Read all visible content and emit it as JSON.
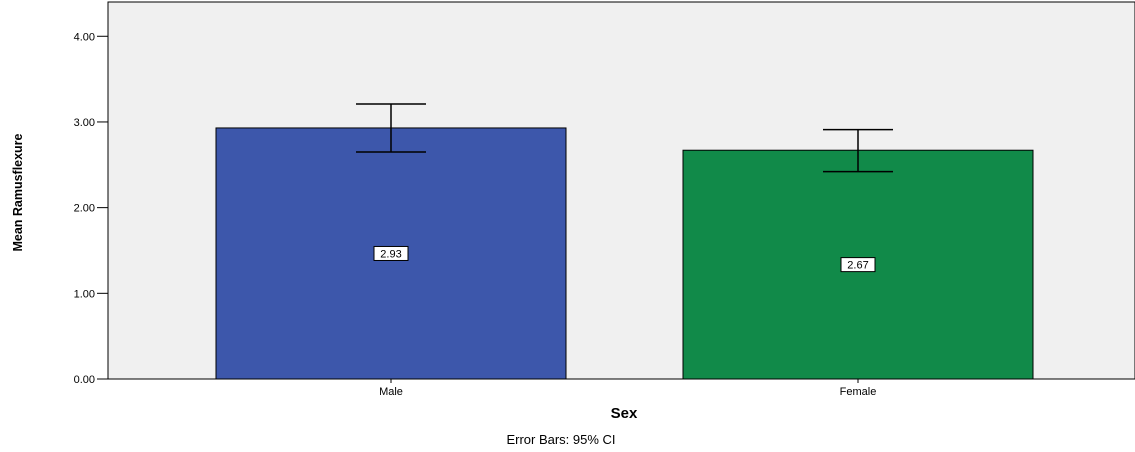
{
  "chart_data": {
    "type": "bar",
    "categories": [
      "Male",
      "Female"
    ],
    "values": [
      2.93,
      2.67
    ],
    "data_labels": [
      "2.93",
      "2.67"
    ],
    "error_bars": [
      {
        "low": 2.65,
        "high": 3.21
      },
      {
        "low": 2.42,
        "high": 2.91
      }
    ],
    "colors": [
      "#3d57ab",
      "#118a49"
    ],
    "plot_background": "#f0f0f0",
    "xlabel": "Sex",
    "ylabel": "Mean Ramusflexure",
    "ylim": [
      0,
      4.4
    ],
    "yticks": [
      0,
      1,
      2,
      3,
      4
    ],
    "ytick_labels": [
      "0.00",
      "1.00",
      "2.00",
      "3.00",
      "4.00"
    ],
    "footnote": "Error Bars: 95% CI",
    "grid": false,
    "legend": "none"
  }
}
